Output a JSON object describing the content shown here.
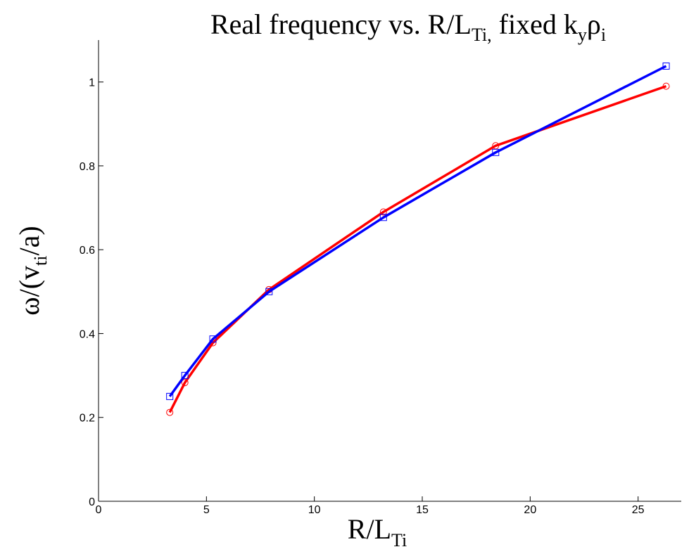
{
  "chart_data": {
    "type": "line",
    "title": {
      "main": "Real frequency vs. R/L",
      "main_sub": "Ti,",
      "tail": " fixed k",
      "tail_sub1": "y",
      "tail_mid": "ρ",
      "tail_sub2": "i"
    },
    "xlabel": {
      "main": "R/L",
      "sub": "Ti"
    },
    "ylabel": {
      "prefix": "ω/(v",
      "sub": "ti",
      "suffix": "/a)"
    },
    "xlim": [
      0,
      27
    ],
    "ylim": [
      0,
      1.1
    ],
    "xticks": [
      0,
      5,
      10,
      15,
      20,
      25
    ],
    "yticks": [
      0,
      0.2,
      0.4,
      0.6,
      0.8,
      1
    ],
    "ytick_labels": [
      "0",
      "0.2",
      "0.4",
      "0.6",
      "0.8",
      "1"
    ],
    "grid": false,
    "series": [
      {
        "color": "#ff0000",
        "marker": "circle",
        "x": [
          3.3,
          4.0,
          5.3,
          7.9,
          13.2,
          18.4,
          26.3
        ],
        "y": [
          0.212,
          0.283,
          0.378,
          0.505,
          0.69,
          0.848,
          0.99
        ]
      },
      {
        "color": "#0000ff",
        "marker": "square",
        "x": [
          3.3,
          4.0,
          5.3,
          7.9,
          13.2,
          18.4,
          26.3
        ],
        "y": [
          0.25,
          0.3,
          0.387,
          0.5,
          0.677,
          0.832,
          1.038
        ]
      }
    ]
  }
}
